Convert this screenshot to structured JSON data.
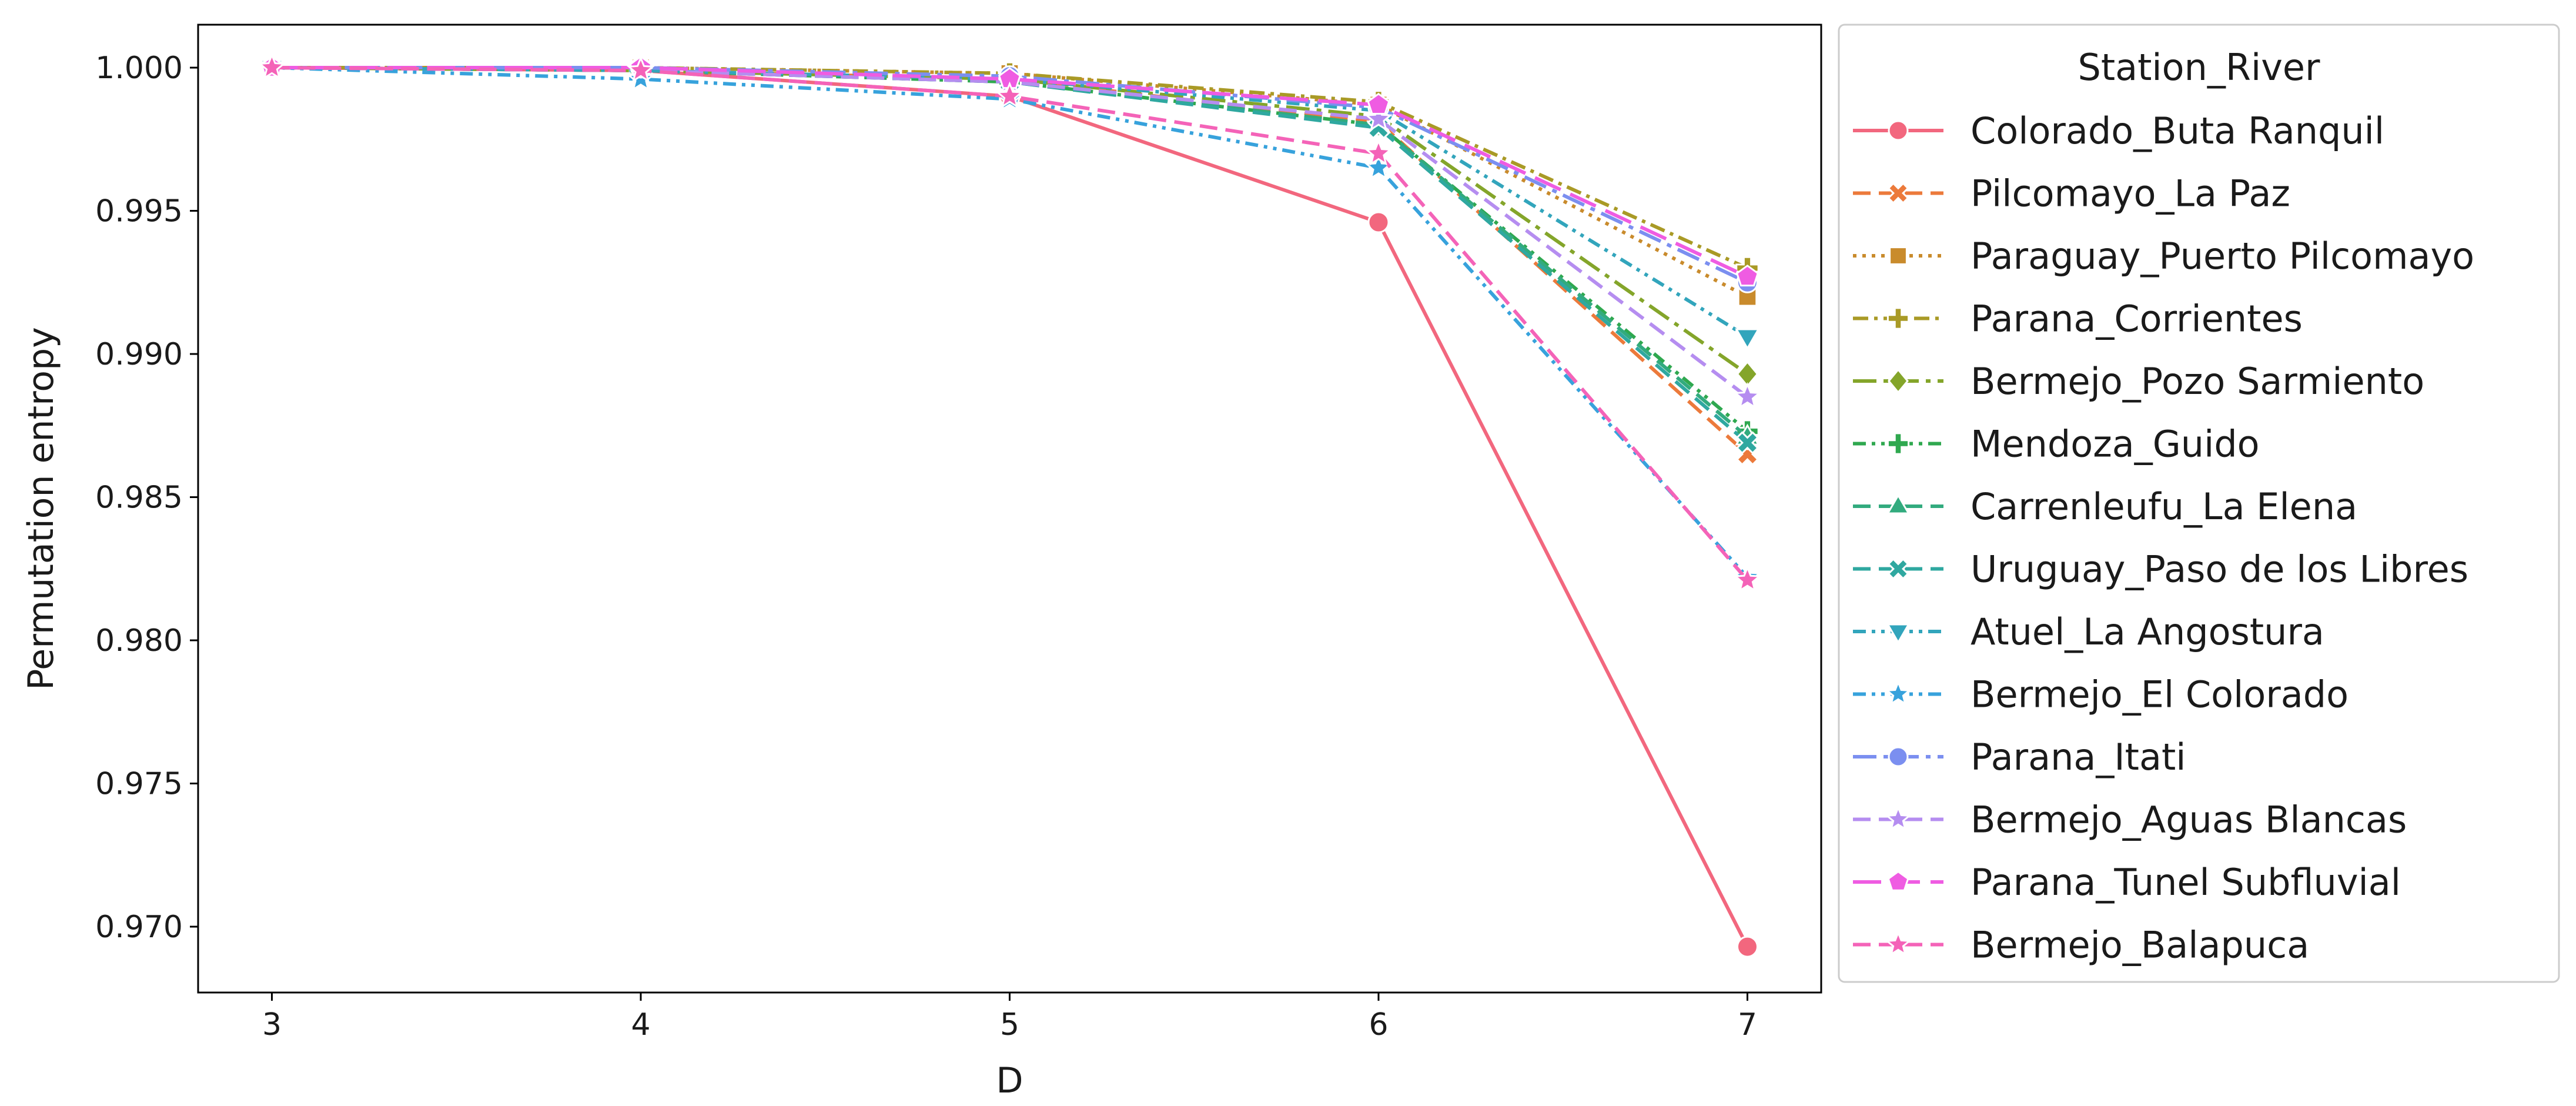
{
  "chart_data": {
    "type": "line",
    "xlabel": "D",
    "ylabel": "Permutation entropy",
    "x": [
      3,
      4,
      5,
      6,
      7
    ],
    "xlim": [
      2.8,
      7.2
    ],
    "ylim": [
      0.9677,
      1.0015
    ],
    "xticks": [
      "3",
      "4",
      "5",
      "6",
      "7"
    ],
    "yticks": [
      "0.970",
      "0.975",
      "0.980",
      "0.985",
      "0.990",
      "0.995",
      "1.000"
    ],
    "ytick_values": [
      0.97,
      0.975,
      0.98,
      0.985,
      0.99,
      0.995,
      1.0
    ],
    "grid": false,
    "legend": {
      "title": "Station_River",
      "position": "outside-right"
    },
    "series": [
      {
        "name": "Colorado_Buta Ranquil",
        "color": "#f2677e",
        "marker": "circle",
        "dash": "solid",
        "values": [
          1.0,
          0.9999,
          0.999,
          0.9946,
          0.9693
        ]
      },
      {
        "name": "Pilcomayo_La Paz",
        "color": "#ec7a3b",
        "marker": "x",
        "dash": "dashed",
        "values": [
          1.0,
          0.9999,
          0.9996,
          0.9981,
          0.9865
        ]
      },
      {
        "name": "Paraguay_Puerto Pilcomayo",
        "color": "#c98b2c",
        "marker": "square",
        "dash": "dotted",
        "values": [
          1.0,
          1.0,
          0.9998,
          0.9987,
          0.992
        ]
      },
      {
        "name": "Parana_Corrientes",
        "color": "#a99a26",
        "marker": "plus",
        "dash": "dashdot",
        "values": [
          1.0,
          1.0,
          0.9998,
          0.9988,
          0.993
        ]
      },
      {
        "name": "Bermejo_Pozo Sarmiento",
        "color": "#84a52a",
        "marker": "diamond",
        "dash": "dashdotlong",
        "values": [
          1.0,
          0.9999,
          0.9996,
          0.9983,
          0.9893
        ]
      },
      {
        "name": "Mendoza_Guido",
        "color": "#2fa84f",
        "marker": "plus",
        "dash": "dashdotdot",
        "values": [
          1.0,
          0.9999,
          0.9995,
          0.998,
          0.9873
        ]
      },
      {
        "name": "Carrenleufu_La Elena",
        "color": "#32ab7e",
        "marker": "triangle-up",
        "dash": "dashed",
        "values": [
          1.0,
          0.9999,
          0.9995,
          0.998,
          0.9871
        ]
      },
      {
        "name": "Uruguay_Paso de los Libres",
        "color": "#2fa8a0",
        "marker": "x",
        "dash": "dashed",
        "values": [
          1.0,
          0.9999,
          0.9995,
          0.9979,
          0.9869
        ]
      },
      {
        "name": "Atuel_La Angostura",
        "color": "#32a5bc",
        "marker": "triangle-down",
        "dash": "dashdotdot",
        "values": [
          1.0,
          0.9999,
          0.9996,
          0.9985,
          0.9906
        ]
      },
      {
        "name": "Bermejo_El Colorado",
        "color": "#37a2dc",
        "marker": "star",
        "dash": "dashdotdot",
        "values": [
          1.0,
          0.9996,
          0.9989,
          0.9965,
          0.9822
        ]
      },
      {
        "name": "Parana_Itati",
        "color": "#7b8ff0",
        "marker": "circle",
        "dash": "dashdotlong",
        "values": [
          1.0,
          1.0,
          0.9997,
          0.9986,
          0.9925
        ]
      },
      {
        "name": "Bermejo_Aguas Blancas",
        "color": "#b58df0",
        "marker": "star",
        "dash": "dashed",
        "values": [
          1.0,
          0.9999,
          0.9995,
          0.9982,
          0.9885
        ]
      },
      {
        "name": "Parana_Tunel Subfluvial",
        "color": "#ef5ce2",
        "marker": "pentagon",
        "dash": "longdash",
        "values": [
          1.0,
          1.0,
          0.9996,
          0.9987,
          0.9927
        ]
      },
      {
        "name": "Bermejo_Balapuca",
        "color": "#f463b8",
        "marker": "star",
        "dash": "dashed",
        "values": [
          1.0,
          0.9999,
          0.999,
          0.997,
          0.9821
        ]
      }
    ]
  }
}
